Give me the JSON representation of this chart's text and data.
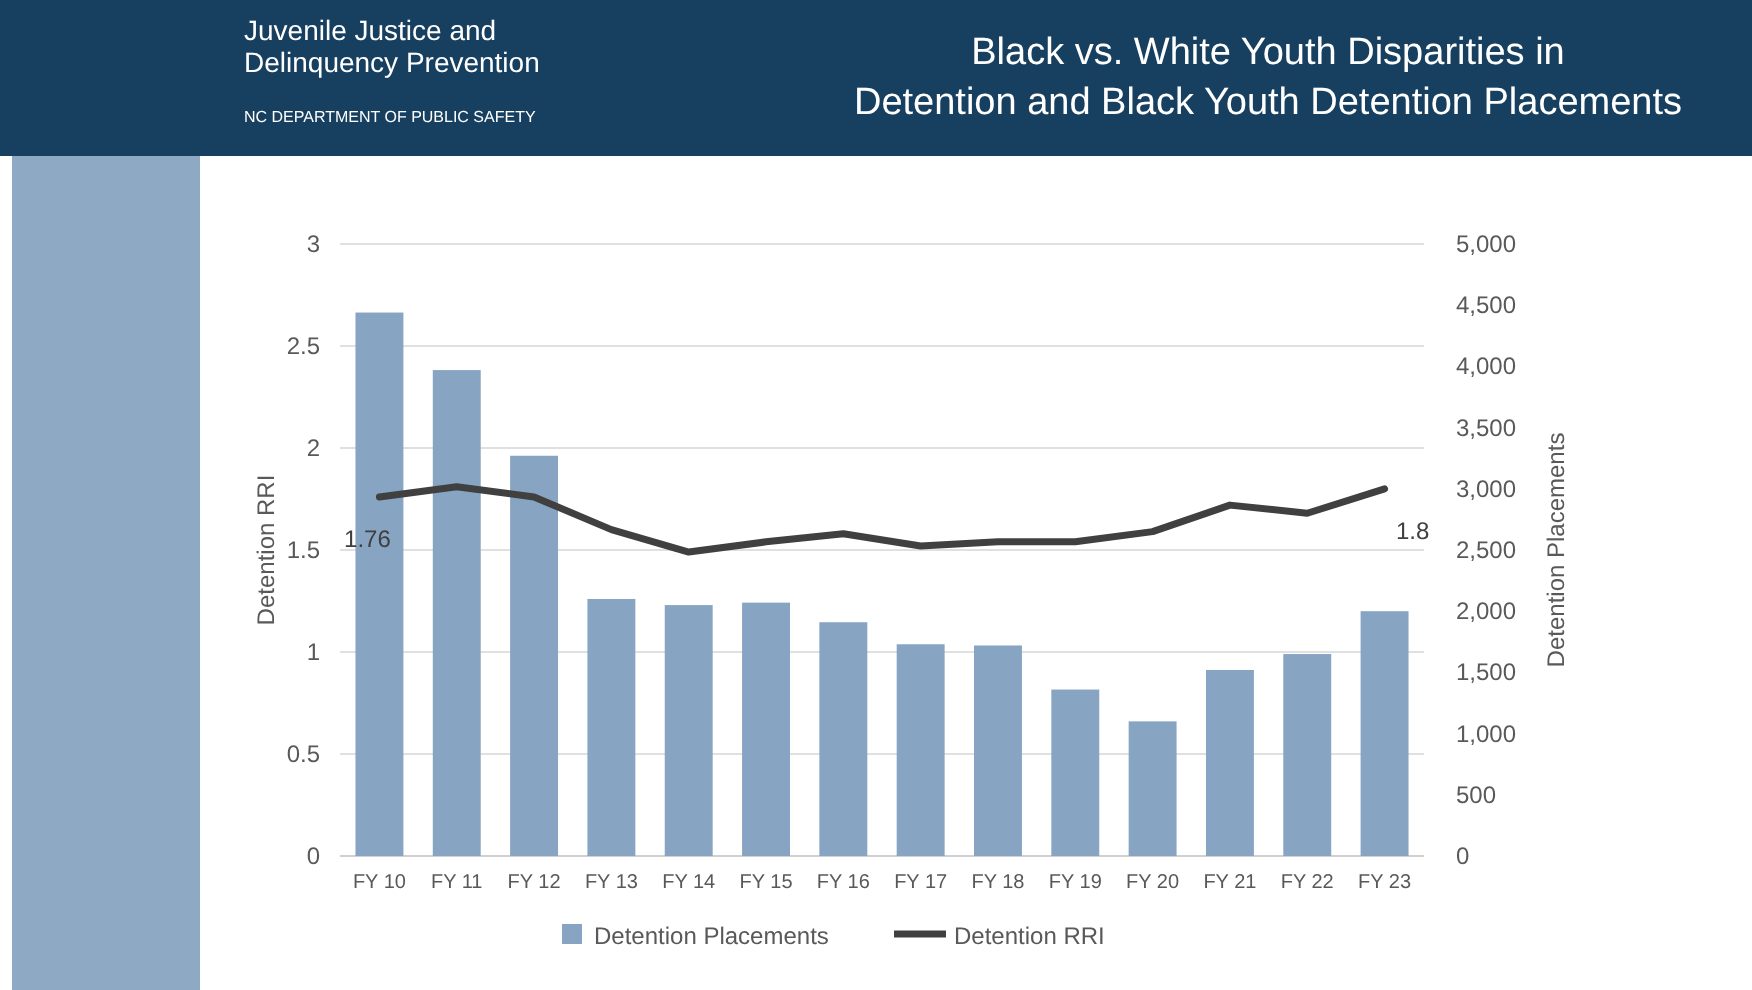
{
  "chart_data": {
    "type": "bar",
    "title": "Black vs. White Youth Disparities in\nDetention and Black Youth Detention Placements",
    "annotations": [
      "Juvenile Justice and\nDelinquency Prevention",
      "NC DEPARTMENT OF PUBLIC SAFETY"
    ],
    "categories": [
      "FY 10",
      "FY 11",
      "FY 12",
      "FY 13",
      "FY 14",
      "FY 15",
      "FY 16",
      "FY 17",
      "FY 18",
      "FY 19",
      "FY 20",
      "FY 21",
      "FY 22",
      "FY 23"
    ],
    "series": [
      {
        "name": "Detention Placements",
        "axis": "y2",
        "color": "#87a5c2",
        "values": [
          4440,
          3970,
          3270,
          2100,
          2050,
          2070,
          1910,
          1730,
          1720,
          1360,
          1100,
          1520,
          1650,
          2000
        ]
      },
      {
        "name": "Detention RRI",
        "type": "line",
        "axis": "y",
        "color": "#404040",
        "values": [
          1.76,
          1.81,
          1.76,
          1.6,
          1.49,
          1.54,
          1.58,
          1.52,
          1.54,
          1.54,
          1.59,
          1.72,
          1.68,
          1.8
        ],
        "value_labels": [
          "1.76",
          null,
          null,
          null,
          null,
          null,
          null,
          null,
          null,
          null,
          null,
          null,
          null,
          "1.8"
        ]
      }
    ],
    "ylabel": "Detention RRI",
    "y2label": "Detention Placements",
    "ylim": [
      0,
      3
    ],
    "yticks": [
      0,
      0.5,
      1,
      1.5,
      2,
      2.5,
      3
    ],
    "y2lim": [
      0,
      5000
    ],
    "y2ticks": [
      {
        "value": 0,
        "label": "0"
      },
      {
        "value": 500,
        "label": "500"
      },
      {
        "value": 1000,
        "label": "1,000"
      },
      {
        "value": 1500,
        "label": "1,500"
      },
      {
        "value": 2000,
        "label": "2,000"
      },
      {
        "value": 2500,
        "label": "2,500"
      },
      {
        "value": 3000,
        "label": "3,000"
      },
      {
        "value": 3500,
        "label": "3,500"
      },
      {
        "value": 4000,
        "label": "4,000"
      },
      {
        "value": 4500,
        "label": "4,500"
      },
      {
        "value": 5000,
        "label": "5,000"
      }
    ],
    "grid": "y",
    "legend": "bottom",
    "marker": "none",
    "line_style": "solid"
  }
}
